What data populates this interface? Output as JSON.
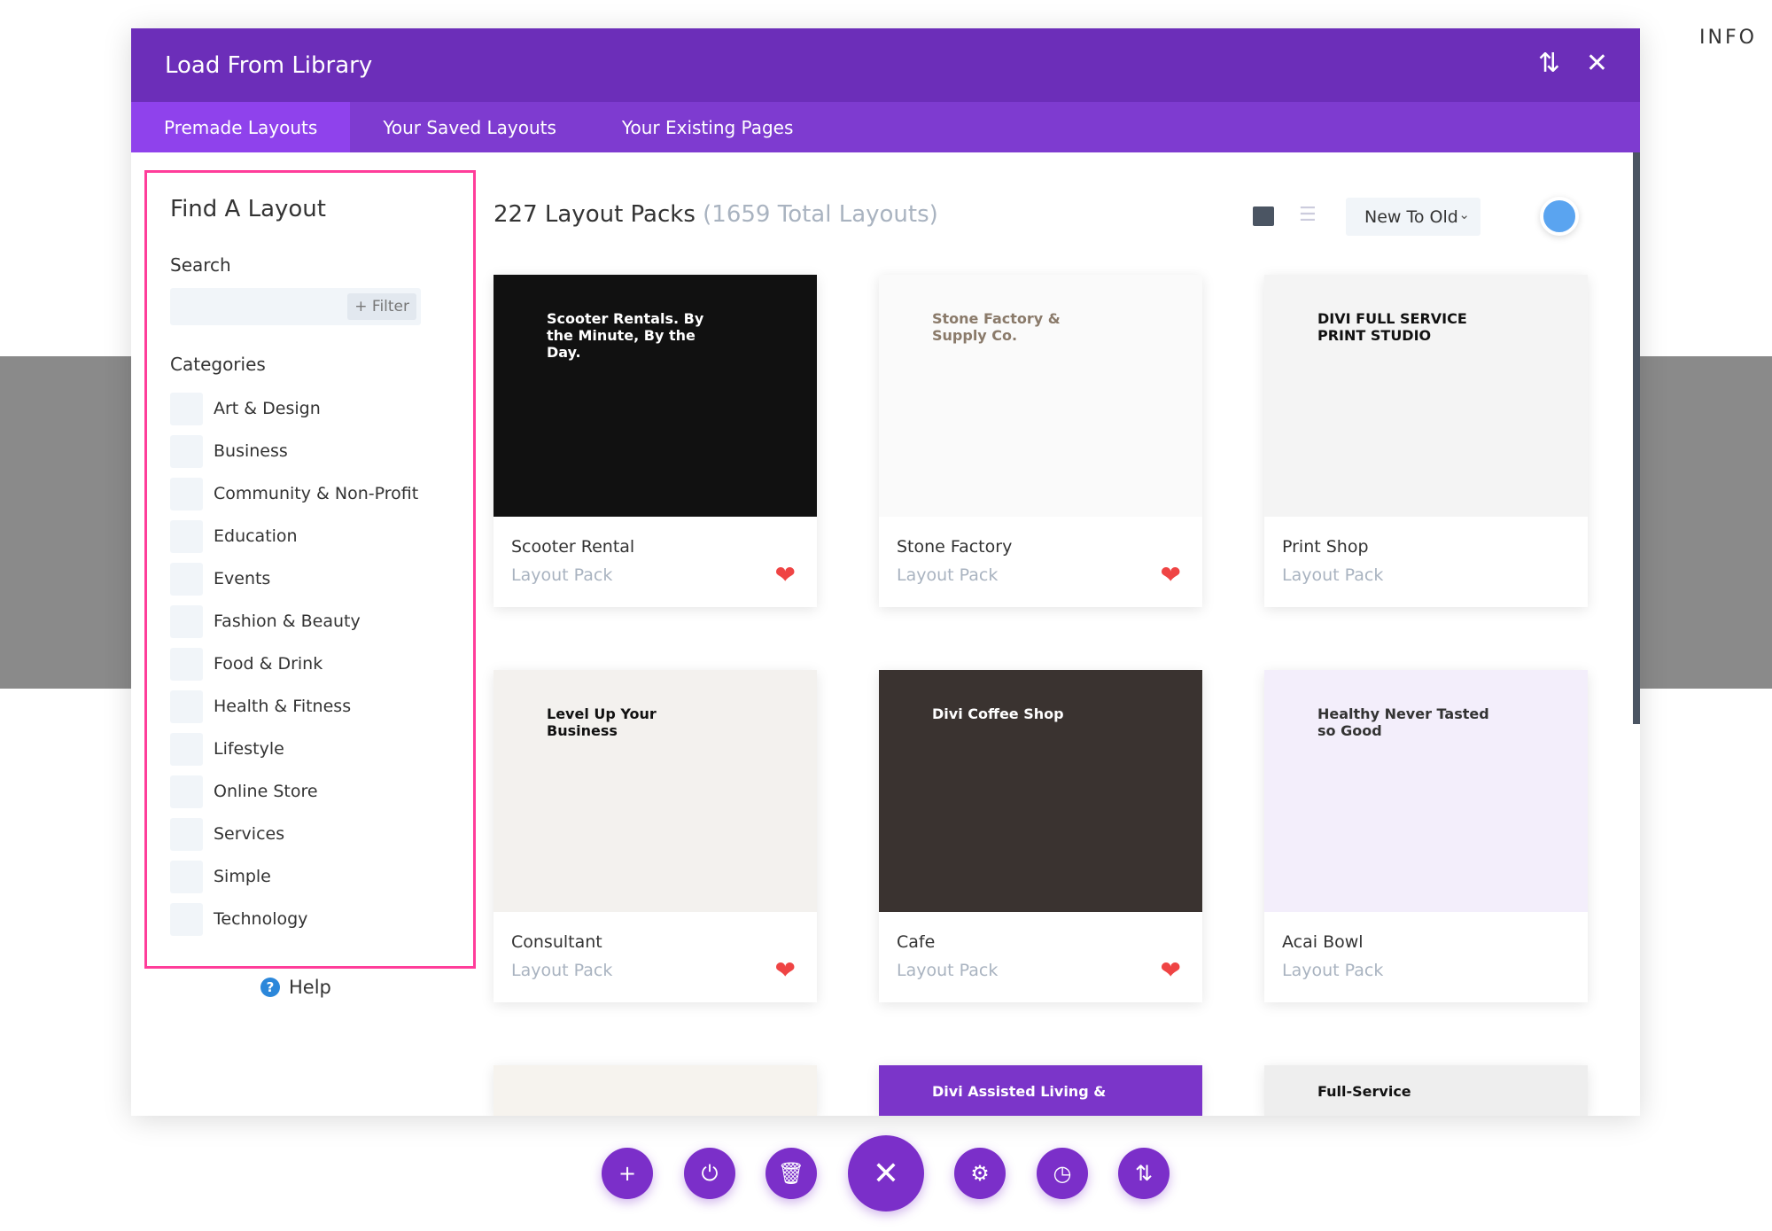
{
  "info_label": "INFO",
  "modal": {
    "title": "Load From Library",
    "tabs": [
      "Premade Layouts",
      "Your Saved Layouts",
      "Your Existing Pages"
    ],
    "active_tab": 0
  },
  "sidebar": {
    "heading": "Find A Layout",
    "search_label": "Search",
    "search_value": "",
    "filter_label": "+ Filter",
    "categories_label": "Categories",
    "categories": [
      "Art & Design",
      "Business",
      "Community & Non-Profit",
      "Education",
      "Events",
      "Fashion & Beauty",
      "Food & Drink",
      "Health & Fitness",
      "Lifestyle",
      "Online Store",
      "Services",
      "Simple",
      "Technology"
    ],
    "help": "Help"
  },
  "main": {
    "count": "227 Layout Packs",
    "total": "(1659 Total Layouts)",
    "sort": "New To Old",
    "cards": [
      {
        "name": "Scooter Rental",
        "sub": "Layout Pack",
        "fav": true,
        "thumb_text": "Scooter Rentals. By the Minute, By the Day.",
        "bg": "#111111",
        "fg": "#ffffff"
      },
      {
        "name": "Stone Factory",
        "sub": "Layout Pack",
        "fav": true,
        "thumb_text": "Stone Factory & Supply Co.",
        "bg": "#fafafa",
        "fg": "#8a7a6a"
      },
      {
        "name": "Print Shop",
        "sub": "Layout Pack",
        "fav": false,
        "thumb_text": "DIVI FULL SERVICE PRINT STUDIO",
        "bg": "#f4f4f4",
        "fg": "#111111"
      },
      {
        "name": "Consultant",
        "sub": "Layout Pack",
        "fav": true,
        "thumb_text": "Level Up Your Business",
        "bg": "#f3f1ee",
        "fg": "#111111"
      },
      {
        "name": "Cafe",
        "sub": "Layout Pack",
        "fav": true,
        "thumb_text": "Divi Coffee Shop",
        "bg": "#3a3330",
        "fg": "#ffffff"
      },
      {
        "name": "Acai Bowl",
        "sub": "Layout Pack",
        "fav": false,
        "thumb_text": "Healthy Never Tasted so Good",
        "bg": "#f3eefb",
        "fg": "#333333"
      },
      {
        "name": "",
        "sub": "",
        "fav": false,
        "thumb_text": "",
        "bg": "#f6f3ee",
        "fg": "#333333"
      },
      {
        "name": "",
        "sub": "",
        "fav": false,
        "thumb_text": "Divi Assisted Living &",
        "bg": "#7b35c9",
        "fg": "#ffffff"
      },
      {
        "name": "",
        "sub": "",
        "fav": false,
        "thumb_text": "Full-Service",
        "bg": "#eeeeee",
        "fg": "#111111"
      }
    ]
  },
  "colors": {
    "header": "#6c2eb9",
    "tabs": "#7e3bd0",
    "active_tab": "#8f42ec",
    "highlight": "#ff3d9a",
    "fab": "#7b2fc9",
    "heart": "#ef4444"
  },
  "toolbar": [
    {
      "icon": "plus-icon",
      "glyph": "+"
    },
    {
      "icon": "power-icon",
      "glyph": "⏻"
    },
    {
      "icon": "trash-icon",
      "glyph": "🗑"
    },
    {
      "icon": "close-icon",
      "glyph": "✕"
    },
    {
      "icon": "gear-icon",
      "glyph": "⚙"
    },
    {
      "icon": "history-icon",
      "glyph": "◷"
    },
    {
      "icon": "sort-icon",
      "glyph": "⇅"
    }
  ]
}
